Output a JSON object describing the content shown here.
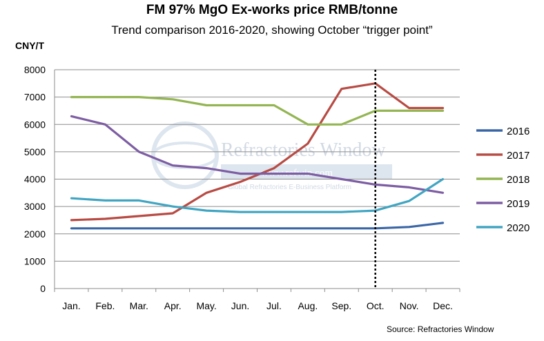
{
  "header": {
    "title": "FM 97% MgO Ex-works price RMB/tonne",
    "subtitle": "Trend comparison 2016-2020, showing October “trigger point”",
    "unit_label": "CNY/T"
  },
  "footer": {
    "source": "Source: Refractories Window"
  },
  "watermark": {
    "name": "Refractories Window",
    "url": "www.refwin.com",
    "tagline": "Global Refractories E-Business Platform"
  },
  "chart_data": {
    "type": "line",
    "categories": [
      "Jan.",
      "Feb.",
      "Mar.",
      "Apr.",
      "May.",
      "Jun.",
      "Jul.",
      "Aug.",
      "Sep.",
      "Oct.",
      "Nov.",
      "Dec."
    ],
    "ylim": [
      0,
      8000
    ],
    "yticks": [
      0,
      1000,
      2000,
      3000,
      4000,
      5000,
      6000,
      7000,
      8000
    ],
    "grid": true,
    "legend_position": "right",
    "marker_category": "Oct.",
    "series": [
      {
        "name": "2016",
        "color": "#3a66a6",
        "values": [
          2200,
          2200,
          2200,
          2200,
          2200,
          2200,
          2200,
          2200,
          2200,
          2200,
          2250,
          2400
        ]
      },
      {
        "name": "2017",
        "color": "#b84b44",
        "values": [
          2500,
          2550,
          2650,
          2750,
          3500,
          3900,
          4400,
          5300,
          7300,
          7500,
          6600,
          6600
        ]
      },
      {
        "name": "2018",
        "color": "#93b552",
        "values": [
          7000,
          7000,
          7000,
          6920,
          6700,
          6700,
          6700,
          6000,
          6000,
          6500,
          6500,
          6500
        ]
      },
      {
        "name": "2019",
        "color": "#7d5da3",
        "values": [
          6300,
          6000,
          5000,
          4500,
          4400,
          4200,
          4200,
          4200,
          4000,
          3800,
          3700,
          3500
        ]
      },
      {
        "name": "2020",
        "color": "#41a5c2",
        "values": [
          3300,
          3220,
          3220,
          3000,
          2850,
          2800,
          2800,
          2800,
          2800,
          2850,
          3200,
          4000
        ]
      }
    ]
  }
}
